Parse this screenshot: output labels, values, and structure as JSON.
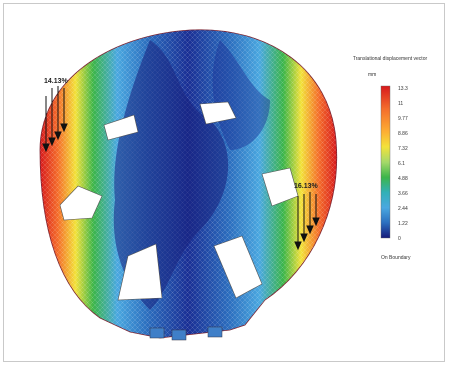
{
  "legend": {
    "title": "Translational displacement vector",
    "unit": "mm",
    "ticks": [
      "13.3",
      "11",
      "9.77",
      "8.86",
      "7.32",
      "6.1",
      "4.88",
      "3.66",
      "2.44",
      "1.22",
      "0"
    ],
    "footer": "On Boundary",
    "colors": [
      "#d7191c",
      "#f46d2b",
      "#fdae34",
      "#f3e23a",
      "#a6d96a",
      "#3cb54a",
      "#31b0b7",
      "#4aa8e0",
      "#2c6fbf",
      "#1a3a9c",
      "#151a7a"
    ]
  },
  "annotations": {
    "left_value": "14.13%",
    "right_value": "16.13%"
  },
  "icons": {
    "left_arrows": "load-arrows-icon",
    "right_arrows": "load-arrows-icon"
  }
}
